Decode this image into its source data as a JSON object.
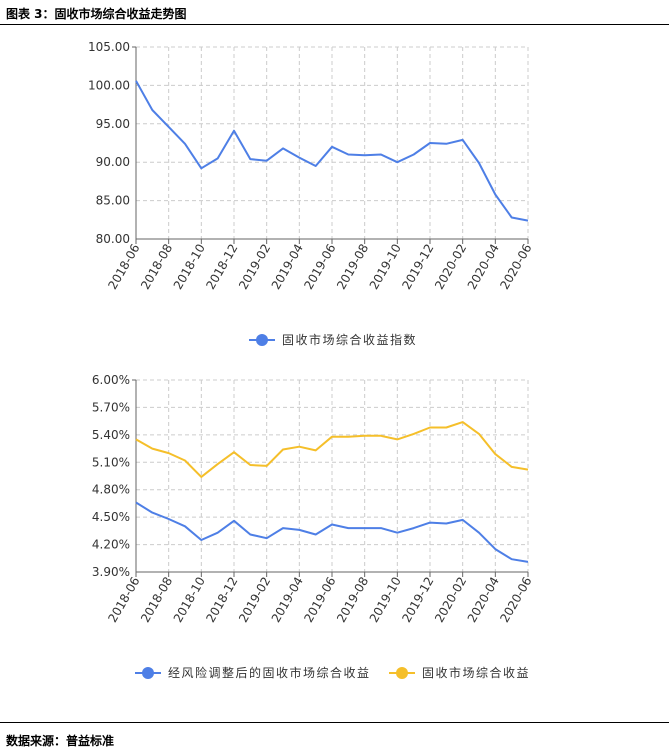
{
  "header": {
    "title": "图表 3：固收市场综合收益走势图"
  },
  "footer": {
    "source": "数据来源：普益标准"
  },
  "colors": {
    "blue": "#4e7fe6",
    "yellow": "#f5bf2a",
    "grid": "#cccccc",
    "axis": "#666666"
  },
  "chart_data": [
    {
      "type": "line",
      "x": [
        "2018-06",
        "2018-07",
        "2018-08",
        "2018-09",
        "2018-10",
        "2018-11",
        "2018-12",
        "2019-01",
        "2019-02",
        "2019-03",
        "2019-04",
        "2019-05",
        "2019-06",
        "2019-07",
        "2019-08",
        "2019-09",
        "2019-10",
        "2019-11",
        "2019-12",
        "2020-01",
        "2020-02",
        "2020-03",
        "2020-04",
        "2020-05",
        "2020-06"
      ],
      "tick_labels": [
        "2018-06",
        "2018-08",
        "2018-10",
        "2018-12",
        "2019-02",
        "2019-04",
        "2019-06",
        "2019-08",
        "2019-10",
        "2019-12",
        "2020-02",
        "2020-04",
        "2020-06"
      ],
      "ylim": [
        80,
        105
      ],
      "y_ticks": [
        "80.00",
        "85.00",
        "90.00",
        "95.00",
        "100.00",
        "105.00"
      ],
      "grid": true,
      "legend_position": "bottom",
      "series": [
        {
          "name": "固收市场综合收益指数",
          "color": "#4e7fe6",
          "values": [
            100.6,
            96.8,
            94.6,
            92.4,
            89.2,
            90.5,
            94.1,
            90.4,
            90.2,
            91.8,
            90.6,
            89.5,
            92.0,
            91.0,
            90.9,
            91.0,
            90.0,
            91.0,
            92.5,
            92.4,
            92.9,
            89.9,
            85.8,
            82.8,
            82.4
          ]
        }
      ]
    },
    {
      "type": "line",
      "x": [
        "2018-06",
        "2018-07",
        "2018-08",
        "2018-09",
        "2018-10",
        "2018-11",
        "2018-12",
        "2019-01",
        "2019-02",
        "2019-03",
        "2019-04",
        "2019-05",
        "2019-06",
        "2019-07",
        "2019-08",
        "2019-09",
        "2019-10",
        "2019-11",
        "2019-12",
        "2020-01",
        "2020-02",
        "2020-03",
        "2020-04",
        "2020-05",
        "2020-06"
      ],
      "tick_labels": [
        "2018-06",
        "2018-08",
        "2018-10",
        "2018-12",
        "2019-02",
        "2019-04",
        "2019-06",
        "2019-08",
        "2019-10",
        "2019-12",
        "2020-02",
        "2020-04",
        "2020-06"
      ],
      "ylim": [
        3.9,
        6.0
      ],
      "y_ticks": [
        "3.90%",
        "4.20%",
        "4.50%",
        "4.80%",
        "5.10%",
        "5.40%",
        "5.70%",
        "6.00%"
      ],
      "grid": true,
      "legend_position": "bottom",
      "series": [
        {
          "name": "经风险调整后的固收市场综合收益",
          "color": "#4e7fe6",
          "values": [
            4.66,
            4.55,
            4.48,
            4.4,
            4.25,
            4.33,
            4.46,
            4.31,
            4.27,
            4.38,
            4.36,
            4.31,
            4.42,
            4.38,
            4.38,
            4.38,
            4.33,
            4.38,
            4.44,
            4.43,
            4.47,
            4.33,
            4.15,
            4.04,
            4.01
          ]
        },
        {
          "name": "固收市场综合收益",
          "color": "#f5bf2a",
          "values": [
            5.35,
            5.25,
            5.2,
            5.12,
            4.94,
            5.08,
            5.21,
            5.07,
            5.06,
            5.24,
            5.27,
            5.23,
            5.38,
            5.38,
            5.39,
            5.39,
            5.35,
            5.41,
            5.48,
            5.48,
            5.54,
            5.41,
            5.19,
            5.05,
            5.02
          ]
        }
      ]
    }
  ]
}
